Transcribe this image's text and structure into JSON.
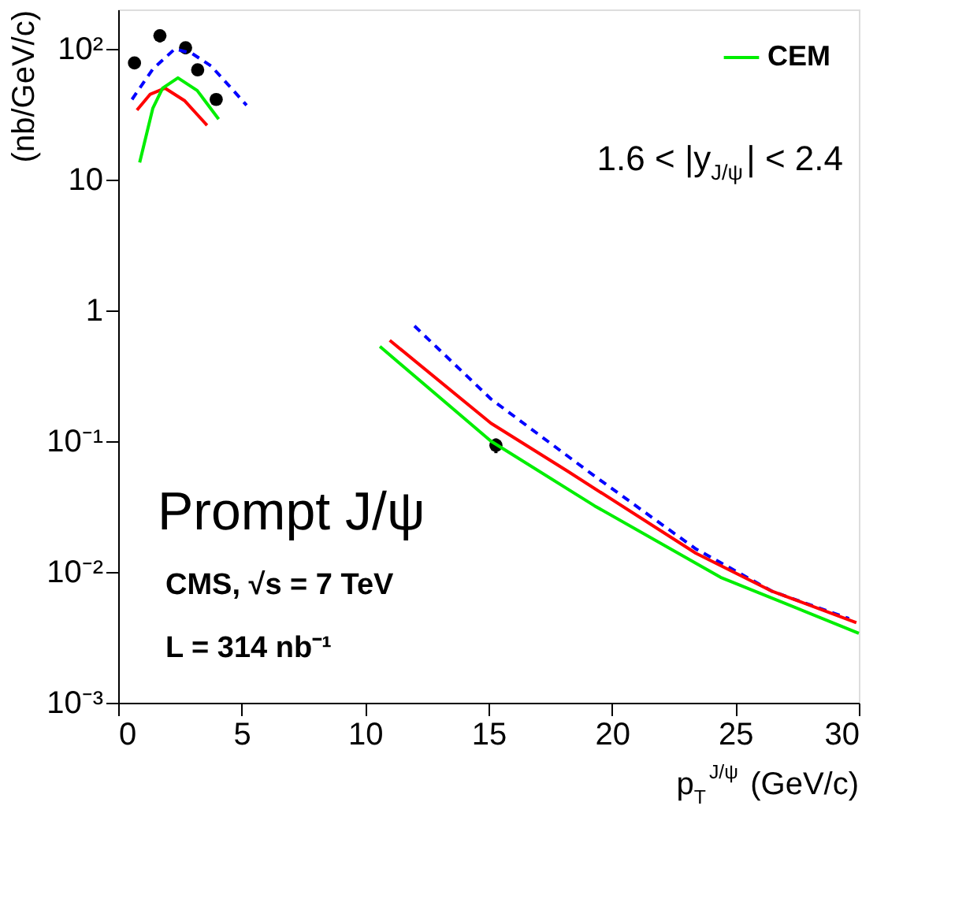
{
  "chart_data": {
    "type": "line",
    "xlabel": "p$_{T}$$^{J/ψ}$ (GeV/c)",
    "ylabel": "(nb/GeV/c)",
    "xlim": [
      0,
      30
    ],
    "xticks": [
      0,
      5,
      10,
      15,
      20,
      25,
      30
    ],
    "ylim": [
      0.001,
      200
    ],
    "log": true,
    "yticks": [
      {
        "value": 0.001,
        "label": "10⁻³"
      },
      {
        "value": 0.01,
        "label": "10⁻²"
      },
      {
        "value": 0.1,
        "label": "10⁻¹"
      },
      {
        "value": 1,
        "label": "1"
      },
      {
        "value": 10,
        "label": "10"
      },
      {
        "value": 100,
        "label": "10²"
      }
    ],
    "grid": false,
    "legend": "top right",
    "series": [
      {
        "type": "scatter",
        "color": "#000000",
        "marker": "circle",
        "x": [
          0.66,
          1.69,
          2.73,
          3.22,
          3.97,
          15.3
        ],
        "values": [
          78,
          126,
          102,
          69,
          41,
          0.093
        ],
        "errors": [
          8,
          14,
          11,
          6,
          3,
          0.012
        ]
      },
      {
        "color": "#0000ff",
        "line_style": "dashed",
        "x": [
          0.56,
          1.4,
          2.3,
          3.0,
          3.76,
          4.5,
          5.2,
          null,
          12.0,
          15.1,
          19.3,
          23.4,
          26.5,
          29.6
        ],
        "values": [
          41,
          70,
          100,
          92,
          74,
          52,
          37,
          null,
          0.76,
          0.21,
          0.054,
          0.015,
          0.0071,
          0.0044
        ]
      },
      {
        "color": "#ff0000",
        "line_style": "solid",
        "x": [
          0.76,
          1.3,
          1.9,
          2.7,
          3.6,
          null,
          11.0,
          15.1,
          18.2,
          23.4,
          26.5,
          29.9
        ],
        "values": [
          34,
          45,
          50,
          40,
          26,
          null,
          0.59,
          0.137,
          0.059,
          0.0139,
          0.0071,
          0.0041
        ]
      },
      {
        "name": "CEM",
        "color": "#00ee00",
        "line_style": "solid",
        "x": [
          0.87,
          1.4,
          1.8,
          2.42,
          3.2,
          4.07,
          null,
          10.6,
          15.1,
          19.3,
          24.4,
          30.0
        ],
        "values": [
          13.5,
          35,
          50,
          60,
          48,
          29,
          null,
          0.53,
          0.1,
          0.032,
          0.0091,
          0.0034
        ]
      }
    ],
    "annotations": [
      "1.6 < |y$_{J/ψ}$| < 2.4",
      "Prompt J/ψ",
      "CMS, √s = 7 TeV",
      "L = 314 nb⁻¹"
    ]
  }
}
